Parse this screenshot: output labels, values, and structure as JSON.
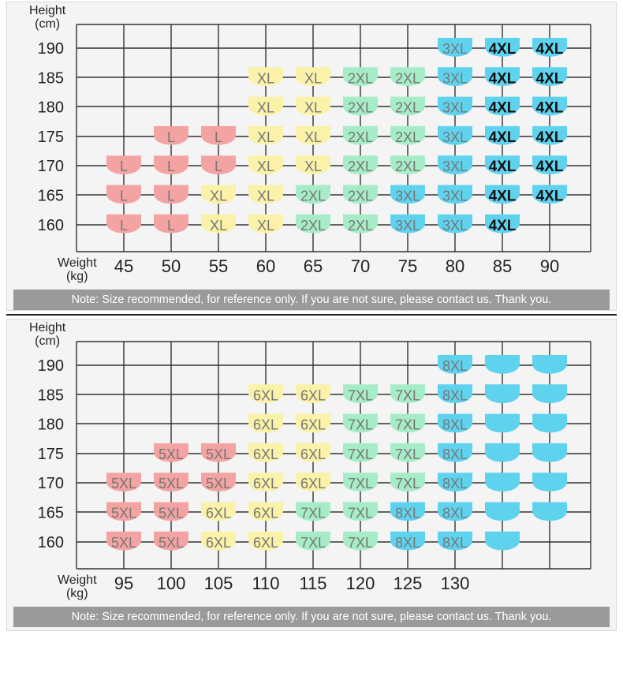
{
  "colors": {
    "L": "#f4a3a3",
    "5XL": "#f4a3a3",
    "XL": "#faf2a8",
    "6XL": "#faf2a8",
    "2XL": "#a6ecc6",
    "7XL": "#a6ecc6",
    "3XL": "#5fd3ee",
    "8XL": "#5fd3ee",
    "4XL": "#5fd3ee",
    "blank": "#5fd3ee",
    "grid": "#333333"
  },
  "chart_data": [
    {
      "type": "table",
      "ylabel": "Height\n(cm)",
      "xlabel": "Weight\n(kg)",
      "heights": [
        "190",
        "185",
        "180",
        "175",
        "170",
        "165",
        "160"
      ],
      "weights": [
        "45",
        "50",
        "55",
        "60",
        "65",
        "70",
        "75",
        "80",
        "85",
        "90"
      ],
      "grid": true,
      "cells": [
        {
          "h": "190",
          "w": "80",
          "size": "3XL"
        },
        {
          "h": "190",
          "w": "85",
          "size": "4XL"
        },
        {
          "h": "190",
          "w": "90",
          "size": "4XL"
        },
        {
          "h": "185",
          "w": "60",
          "size": "XL"
        },
        {
          "h": "185",
          "w": "65",
          "size": "XL"
        },
        {
          "h": "185",
          "w": "70",
          "size": "2XL"
        },
        {
          "h": "185",
          "w": "75",
          "size": "2XL"
        },
        {
          "h": "185",
          "w": "80",
          "size": "3XL"
        },
        {
          "h": "185",
          "w": "85",
          "size": "4XL"
        },
        {
          "h": "185",
          "w": "90",
          "size": "4XL"
        },
        {
          "h": "180",
          "w": "60",
          "size": "XL"
        },
        {
          "h": "180",
          "w": "65",
          "size": "XL"
        },
        {
          "h": "180",
          "w": "70",
          "size": "2XL"
        },
        {
          "h": "180",
          "w": "75",
          "size": "2XL"
        },
        {
          "h": "180",
          "w": "80",
          "size": "3XL"
        },
        {
          "h": "180",
          "w": "85",
          "size": "4XL"
        },
        {
          "h": "180",
          "w": "90",
          "size": "4XL"
        },
        {
          "h": "175",
          "w": "50",
          "size": "L"
        },
        {
          "h": "175",
          "w": "55",
          "size": "L"
        },
        {
          "h": "175",
          "w": "60",
          "size": "XL"
        },
        {
          "h": "175",
          "w": "65",
          "size": "XL"
        },
        {
          "h": "175",
          "w": "70",
          "size": "2XL"
        },
        {
          "h": "175",
          "w": "75",
          "size": "2XL"
        },
        {
          "h": "175",
          "w": "80",
          "size": "3XL"
        },
        {
          "h": "175",
          "w": "85",
          "size": "4XL"
        },
        {
          "h": "175",
          "w": "90",
          "size": "4XL"
        },
        {
          "h": "170",
          "w": "45",
          "size": "L"
        },
        {
          "h": "170",
          "w": "50",
          "size": "L"
        },
        {
          "h": "170",
          "w": "55",
          "size": "L"
        },
        {
          "h": "170",
          "w": "60",
          "size": "XL"
        },
        {
          "h": "170",
          "w": "65",
          "size": "XL"
        },
        {
          "h": "170",
          "w": "70",
          "size": "2XL"
        },
        {
          "h": "170",
          "w": "75",
          "size": "2XL"
        },
        {
          "h": "170",
          "w": "80",
          "size": "3XL"
        },
        {
          "h": "170",
          "w": "85",
          "size": "4XL"
        },
        {
          "h": "170",
          "w": "90",
          "size": "4XL"
        },
        {
          "h": "165",
          "w": "45",
          "size": "L"
        },
        {
          "h": "165",
          "w": "50",
          "size": "L"
        },
        {
          "h": "165",
          "w": "55",
          "size": "XL"
        },
        {
          "h": "165",
          "w": "60",
          "size": "XL"
        },
        {
          "h": "165",
          "w": "65",
          "size": "2XL"
        },
        {
          "h": "165",
          "w": "70",
          "size": "2XL"
        },
        {
          "h": "165",
          "w": "75",
          "size": "3XL"
        },
        {
          "h": "165",
          "w": "80",
          "size": "3XL"
        },
        {
          "h": "165",
          "w": "85",
          "size": "4XL"
        },
        {
          "h": "165",
          "w": "90",
          "size": "4XL"
        },
        {
          "h": "160",
          "w": "45",
          "size": "L"
        },
        {
          "h": "160",
          "w": "50",
          "size": "L"
        },
        {
          "h": "160",
          "w": "55",
          "size": "XL"
        },
        {
          "h": "160",
          "w": "60",
          "size": "XL"
        },
        {
          "h": "160",
          "w": "65",
          "size": "2XL"
        },
        {
          "h": "160",
          "w": "70",
          "size": "2XL"
        },
        {
          "h": "160",
          "w": "75",
          "size": "3XL"
        },
        {
          "h": "160",
          "w": "80",
          "size": "3XL"
        },
        {
          "h": "160",
          "w": "85",
          "size": "4XL"
        }
      ],
      "note": "Note: Size recommended, for reference only. If you are not sure, please contact us. Thank you."
    },
    {
      "type": "table",
      "ylabel": "Height\n(cm)",
      "xlabel": "Weight\n(kg)",
      "heights": [
        "190",
        "185",
        "180",
        "175",
        "170",
        "165",
        "160"
      ],
      "weights": [
        "95",
        "100",
        "105",
        "110",
        "115",
        "120",
        "125",
        "130",
        "",
        ""
      ],
      "grid": true,
      "cells": [
        {
          "h": "190",
          "w": 7,
          "size": "8XL"
        },
        {
          "h": "190",
          "w": 8,
          "size": ""
        },
        {
          "h": "190",
          "w": 9,
          "size": ""
        },
        {
          "h": "185",
          "w": 3,
          "size": "6XL"
        },
        {
          "h": "185",
          "w": 4,
          "size": "6XL"
        },
        {
          "h": "185",
          "w": 5,
          "size": "7XL"
        },
        {
          "h": "185",
          "w": 6,
          "size": "7XL"
        },
        {
          "h": "185",
          "w": 7,
          "size": "8XL"
        },
        {
          "h": "185",
          "w": 8,
          "size": ""
        },
        {
          "h": "185",
          "w": 9,
          "size": ""
        },
        {
          "h": "180",
          "w": 3,
          "size": "6XL"
        },
        {
          "h": "180",
          "w": 4,
          "size": "6XL"
        },
        {
          "h": "180",
          "w": 5,
          "size": "7XL"
        },
        {
          "h": "180",
          "w": 6,
          "size": "7XL"
        },
        {
          "h": "180",
          "w": 7,
          "size": "8XL"
        },
        {
          "h": "180",
          "w": 8,
          "size": ""
        },
        {
          "h": "180",
          "w": 9,
          "size": ""
        },
        {
          "h": "175",
          "w": 1,
          "size": "5XL"
        },
        {
          "h": "175",
          "w": 2,
          "size": "5XL"
        },
        {
          "h": "175",
          "w": 3,
          "size": "6XL"
        },
        {
          "h": "175",
          "w": 4,
          "size": "6XL"
        },
        {
          "h": "175",
          "w": 5,
          "size": "7XL"
        },
        {
          "h": "175",
          "w": 6,
          "size": "7XL"
        },
        {
          "h": "175",
          "w": 7,
          "size": "8XL"
        },
        {
          "h": "175",
          "w": 8,
          "size": ""
        },
        {
          "h": "175",
          "w": 9,
          "size": ""
        },
        {
          "h": "170",
          "w": 0,
          "size": "5XL"
        },
        {
          "h": "170",
          "w": 1,
          "size": "5XL"
        },
        {
          "h": "170",
          "w": 2,
          "size": "5XL"
        },
        {
          "h": "170",
          "w": 3,
          "size": "6XL"
        },
        {
          "h": "170",
          "w": 4,
          "size": "6XL"
        },
        {
          "h": "170",
          "w": 5,
          "size": "7XL"
        },
        {
          "h": "170",
          "w": 6,
          "size": "7XL"
        },
        {
          "h": "170",
          "w": 7,
          "size": "8XL"
        },
        {
          "h": "170",
          "w": 8,
          "size": ""
        },
        {
          "h": "170",
          "w": 9,
          "size": ""
        },
        {
          "h": "165",
          "w": 0,
          "size": "5XL"
        },
        {
          "h": "165",
          "w": 1,
          "size": "5XL"
        },
        {
          "h": "165",
          "w": 2,
          "size": "6XL"
        },
        {
          "h": "165",
          "w": 3,
          "size": "6XL"
        },
        {
          "h": "165",
          "w": 4,
          "size": "7XL"
        },
        {
          "h": "165",
          "w": 5,
          "size": "7XL"
        },
        {
          "h": "165",
          "w": 6,
          "size": "8XL"
        },
        {
          "h": "165",
          "w": 7,
          "size": "8XL"
        },
        {
          "h": "165",
          "w": 8,
          "size": ""
        },
        {
          "h": "165",
          "w": 9,
          "size": ""
        },
        {
          "h": "160",
          "w": 0,
          "size": "5XL"
        },
        {
          "h": "160",
          "w": 1,
          "size": "5XL"
        },
        {
          "h": "160",
          "w": 2,
          "size": "6XL"
        },
        {
          "h": "160",
          "w": 3,
          "size": "6XL"
        },
        {
          "h": "160",
          "w": 4,
          "size": "7XL"
        },
        {
          "h": "160",
          "w": 5,
          "size": "7XL"
        },
        {
          "h": "160",
          "w": 6,
          "size": "8XL"
        },
        {
          "h": "160",
          "w": 7,
          "size": "8XL"
        },
        {
          "h": "160",
          "w": 8,
          "size": ""
        }
      ],
      "note": "Note: Size recommended, for reference only. If you are not sure, please contact us. Thank you."
    }
  ]
}
